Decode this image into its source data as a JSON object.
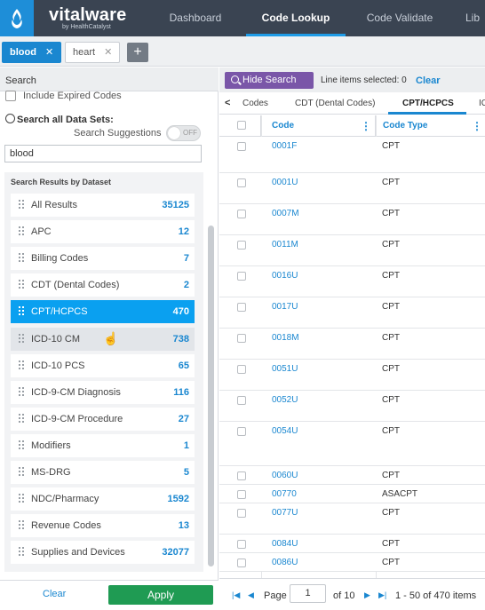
{
  "header": {
    "brand": "vitalware",
    "brand_sub": "by HealthCatalyst",
    "nav": [
      "Dashboard",
      "Code Lookup",
      "Code Validate",
      "Lib"
    ],
    "active_nav": "Code Lookup"
  },
  "search_tabs": [
    {
      "label": "blood",
      "active": true
    },
    {
      "label": "heart",
      "active": false
    }
  ],
  "left_panel": {
    "title": "Search",
    "include_expired_label": "Include Expired Codes",
    "search_all_label": "Search all Data Sets:",
    "suggestions_label": "Search Suggestions",
    "toggle_label": "OFF",
    "search_value": "blood",
    "results_title": "Search Results by Dataset",
    "datasets": [
      {
        "label": "All Results",
        "count": "35125"
      },
      {
        "label": "APC",
        "count": "12"
      },
      {
        "label": "Billing Codes",
        "count": "7"
      },
      {
        "label": "CDT (Dental Codes)",
        "count": "2"
      },
      {
        "label": "CPT/HCPCS",
        "count": "470"
      },
      {
        "label": "ICD-10 CM",
        "count": "738"
      },
      {
        "label": "ICD-10 PCS",
        "count": "65"
      },
      {
        "label": "ICD-9-CM Diagnosis",
        "count": "116"
      },
      {
        "label": "ICD-9-CM Procedure",
        "count": "27"
      },
      {
        "label": "Modifiers",
        "count": "1"
      },
      {
        "label": "MS-DRG",
        "count": "5"
      },
      {
        "label": "NDC/Pharmacy",
        "count": "1592"
      },
      {
        "label": "Revenue Codes",
        "count": "13"
      },
      {
        "label": "Supplies and Devices",
        "count": "32077"
      }
    ],
    "selected_dataset": "CPT/HCPCS",
    "hover_dataset": "ICD-10 CM",
    "clear_label": "Clear",
    "apply_label": "Apply"
  },
  "right_panel": {
    "hide_search_label": "Hide Search",
    "line_items_label": "Line items selected: 0",
    "clear_label": "Clear",
    "dataset_tabs": [
      "Codes",
      "CDT (Dental Codes)",
      "CPT/HCPCS",
      "IC"
    ],
    "active_dataset_tab": "CPT/HCPCS",
    "columns": [
      "Code",
      "Code Type"
    ],
    "rows": [
      {
        "code": "0001F",
        "type": "CPT"
      },
      {
        "code": "0001U",
        "type": "CPT"
      },
      {
        "code": "0007M",
        "type": "CPT"
      },
      {
        "code": "0011M",
        "type": "CPT"
      },
      {
        "code": "0016U",
        "type": "CPT"
      },
      {
        "code": "0017U",
        "type": "CPT"
      },
      {
        "code": "0018M",
        "type": "CPT"
      },
      {
        "code": "0051U",
        "type": "CPT"
      },
      {
        "code": "0052U",
        "type": "CPT"
      },
      {
        "code": "0054U",
        "type": "CPT"
      },
      {
        "code": "0060U",
        "type": "CPT"
      },
      {
        "code": "00770",
        "type": "ASACPT"
      },
      {
        "code": "0077U",
        "type": "CPT"
      },
      {
        "code": "0084U",
        "type": "CPT"
      },
      {
        "code": "0086U",
        "type": "CPT"
      }
    ],
    "pager": {
      "page_label": "Page",
      "page_value": "1",
      "of_label": "of 10",
      "range_label": "1 - 50 of 470 items"
    }
  }
}
